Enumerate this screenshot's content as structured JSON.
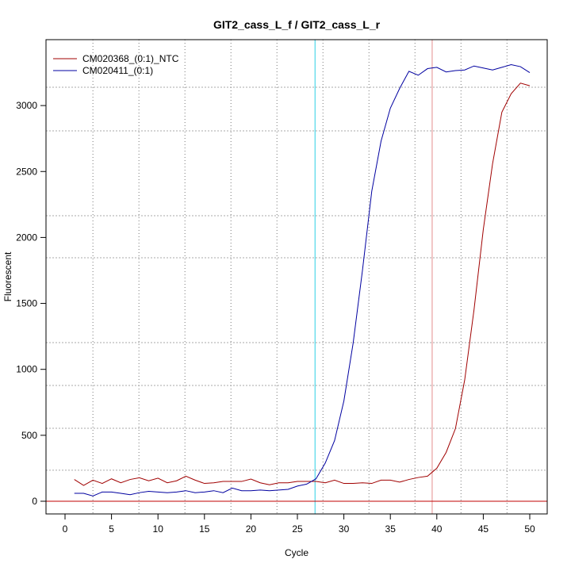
{
  "chart_data": {
    "type": "line",
    "title": "GIT2_cass_L_f / GIT2_cass_L_r",
    "xlabel": "Cycle",
    "ylabel": "Fluorescent",
    "xlim": [
      -2,
      52
    ],
    "ylim": [
      -80,
      3400
    ],
    "xticks": [
      0,
      5,
      10,
      15,
      20,
      25,
      30,
      35,
      40,
      45,
      50
    ],
    "yticks": [
      0,
      500,
      1000,
      1500,
      2000,
      2500,
      3000
    ],
    "legend_position": "top-left",
    "grid": true,
    "threshold": 0,
    "markers": [
      {
        "cycle": 26.9,
        "color": "#4fd8e8"
      },
      {
        "cycle": 39.5,
        "color": "#e8a0a0"
      }
    ],
    "x": [
      1,
      2,
      3,
      4,
      5,
      6,
      7,
      8,
      9,
      10,
      11,
      12,
      13,
      14,
      15,
      16,
      17,
      18,
      19,
      20,
      21,
      22,
      23,
      24,
      25,
      26,
      27,
      28,
      29,
      30,
      31,
      32,
      33,
      34,
      35,
      36,
      37,
      38,
      39,
      40,
      41,
      42,
      43,
      44,
      45,
      46,
      47,
      48,
      49,
      50
    ],
    "series": [
      {
        "name": "CM020368_(0:1)_NTC",
        "color": "#a00000",
        "values": [
          165,
          120,
          160,
          135,
          170,
          140,
          165,
          178,
          155,
          175,
          140,
          155,
          190,
          160,
          135,
          140,
          150,
          150,
          150,
          168,
          140,
          125,
          140,
          140,
          150,
          150,
          150,
          140,
          160,
          135,
          135,
          140,
          135,
          160,
          160,
          145,
          165,
          180,
          190,
          250,
          370,
          550,
          920,
          1450,
          2060,
          2560,
          2950,
          3090,
          3170,
          3150
        ]
      },
      {
        "name": "CM020411_(0:1)",
        "color": "#0000a0",
        "values": [
          60,
          60,
          40,
          70,
          70,
          60,
          50,
          65,
          75,
          70,
          65,
          70,
          80,
          65,
          70,
          80,
          65,
          100,
          80,
          80,
          85,
          80,
          85,
          90,
          115,
          130,
          170,
          290,
          460,
          760,
          1200,
          1750,
          2350,
          2730,
          2980,
          3130,
          3260,
          3230,
          3280,
          3290,
          3255,
          3265,
          3270,
          3300,
          3285,
          3270,
          3290,
          3310,
          3295,
          3250
        ]
      }
    ]
  }
}
